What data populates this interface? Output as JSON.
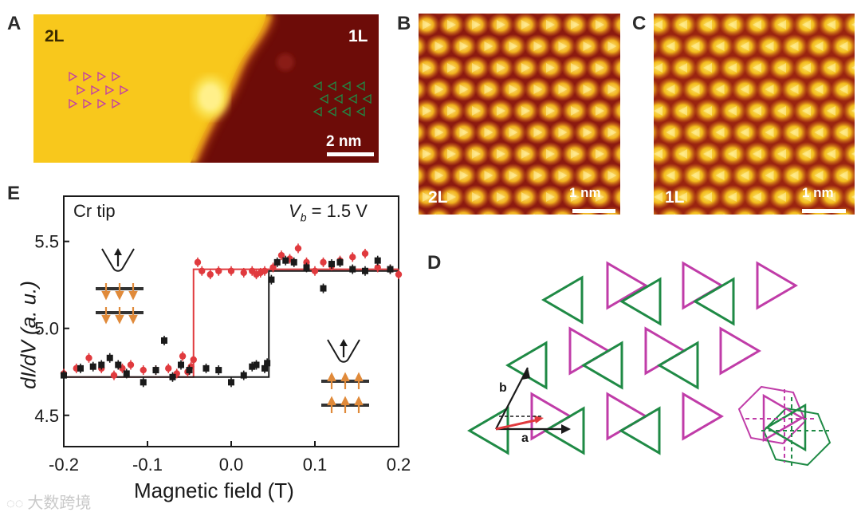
{
  "panels": {
    "a": {
      "letter": "A",
      "left_label": "2L",
      "right_label": "1L",
      "scale_bar": "2 nm"
    },
    "b": {
      "letter": "B",
      "layer_label": "2L",
      "scale_bar": "1 nm"
    },
    "c": {
      "letter": "C",
      "layer_label": "1L",
      "scale_bar": "1 nm"
    },
    "d": {
      "letter": "D",
      "vector_a": "a",
      "vector_b": "b"
    },
    "e": {
      "letter": "E",
      "tip_label": "Cr tip",
      "bias_var": "V",
      "bias_sub": "b",
      "bias_value": "= 1.5 V"
    }
  },
  "colors": {
    "magenta": "#c03ca8",
    "green": "#1f8a45",
    "red": "#e03a3e",
    "black": "#1a1a1a",
    "orange": "#e08a3a",
    "stm_bright": "#f5d21c",
    "stm_dark": "#6e0a08"
  },
  "chart_data": {
    "type": "scatter",
    "title": "",
    "xlabel": "Magnetic field (T)",
    "ylabel": "dI/dV (a. u.)",
    "xlim": [
      -0.2,
      0.2
    ],
    "ylim": [
      4.32,
      5.76
    ],
    "xticks": [
      "-0.2",
      "-0.1",
      "0.0",
      "0.1",
      "0.2"
    ],
    "xtick_values": [
      -0.2,
      -0.1,
      0.0,
      0.1,
      0.2
    ],
    "yticks": [
      "4.5",
      "5.0",
      "5.5"
    ],
    "ytick_values": [
      4.5,
      5.0,
      5.5
    ],
    "series": [
      {
        "name": "red sweep",
        "color": "#e03a3e",
        "x": [
          -0.2,
          -0.185,
          -0.17,
          -0.155,
          -0.14,
          -0.13,
          -0.12,
          -0.105,
          -0.09,
          -0.075,
          -0.065,
          -0.058,
          -0.052,
          -0.048,
          -0.045,
          -0.04,
          -0.035,
          -0.025,
          -0.015,
          0.0,
          0.015,
          0.025,
          0.03,
          0.035,
          0.04,
          0.05,
          0.06,
          0.07,
          0.08,
          0.09,
          0.1,
          0.11,
          0.12,
          0.13,
          0.145,
          0.16,
          0.175,
          0.19,
          0.2
        ],
        "y": [
          4.74,
          4.77,
          4.83,
          4.77,
          4.73,
          4.77,
          4.79,
          4.76,
          4.76,
          4.77,
          4.74,
          4.84,
          4.75,
          4.78,
          4.82,
          5.38,
          5.33,
          5.31,
          5.33,
          5.33,
          5.32,
          5.33,
          5.31,
          5.32,
          5.33,
          5.35,
          5.42,
          5.4,
          5.46,
          5.38,
          5.33,
          5.38,
          5.36,
          5.39,
          5.41,
          5.43,
          5.35,
          5.34,
          5.31
        ],
        "step": {
          "x": [
            -0.2,
            -0.045,
            -0.045,
            0.2
          ],
          "y": [
            4.72,
            4.72,
            5.34,
            5.34
          ]
        }
      },
      {
        "name": "black sweep",
        "color": "#1a1a1a",
        "x": [
          -0.2,
          -0.18,
          -0.165,
          -0.155,
          -0.145,
          -0.135,
          -0.125,
          -0.105,
          -0.09,
          -0.08,
          -0.07,
          -0.06,
          -0.05,
          -0.03,
          -0.015,
          0.0,
          0.015,
          0.025,
          0.03,
          0.04,
          0.043,
          0.048,
          0.055,
          0.065,
          0.075,
          0.09,
          0.11,
          0.12,
          0.13,
          0.145,
          0.16,
          0.175,
          0.19
        ],
        "y": [
          4.73,
          4.77,
          4.78,
          4.79,
          4.83,
          4.79,
          4.74,
          4.69,
          4.76,
          4.93,
          4.72,
          4.79,
          4.76,
          4.77,
          4.76,
          4.69,
          4.73,
          4.78,
          4.79,
          4.77,
          4.8,
          5.28,
          5.38,
          5.39,
          5.38,
          5.35,
          5.23,
          5.37,
          5.38,
          5.34,
          5.33,
          5.39,
          5.34
        ],
        "step": {
          "x": [
            -0.2,
            0.045,
            0.045,
            0.2
          ],
          "y": [
            4.72,
            4.72,
            5.33,
            5.33
          ]
        }
      }
    ]
  },
  "watermark": "大数跨境"
}
